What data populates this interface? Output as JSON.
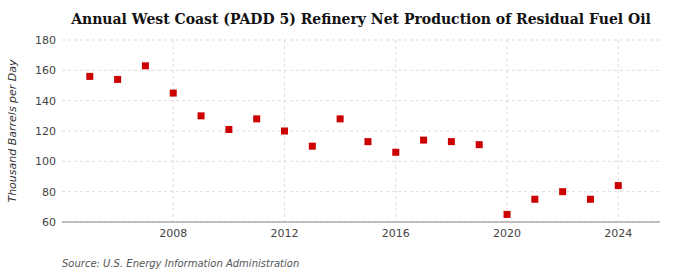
{
  "chart_data": {
    "type": "scatter",
    "title": "Annual West Coast (PADD 5) Refinery Net Production of Residual Fuel Oil",
    "ylabel": "Thousand Barrels per Day",
    "annotations": [
      "Source: U.S. Energy Information Administration"
    ],
    "x": [
      2005,
      2006,
      2007,
      2008,
      2009,
      2010,
      2011,
      2012,
      2013,
      2014,
      2015,
      2016,
      2017,
      2018,
      2019,
      2020,
      2021,
      2022,
      2023,
      2024
    ],
    "values": [
      156,
      154,
      163,
      145,
      130,
      121,
      128,
      120,
      110,
      128,
      113,
      106,
      114,
      113,
      111,
      65,
      75,
      80,
      75,
      84
    ],
    "color": "#cc0000",
    "marker": "square",
    "xlim": [
      2004.0,
      2025.5
    ],
    "ylim": [
      60,
      180
    ],
    "xticks": [
      2008,
      2012,
      2016,
      2020,
      2024
    ],
    "yticks": [
      60,
      80,
      100,
      120,
      140,
      160,
      180
    ],
    "grid": true
  }
}
